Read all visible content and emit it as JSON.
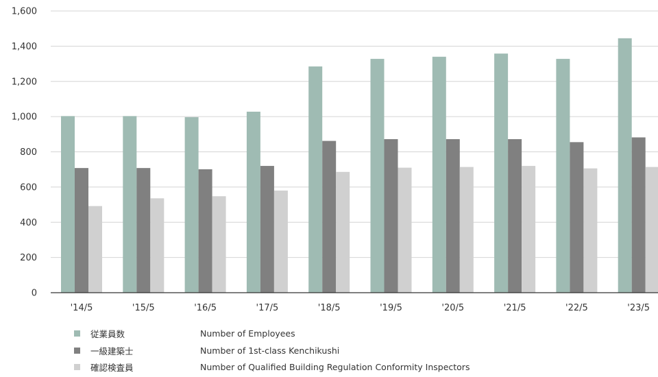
{
  "chart_data": {
    "type": "bar",
    "categories": [
      "'14/5",
      "'15/5",
      "'16/5",
      "'17/5",
      "'18/5",
      "'19/5",
      "'20/5",
      "'21/5",
      "'22/5",
      "'23/5"
    ],
    "series": [
      {
        "name": "従業員数",
        "name_en": "Number of Employees",
        "color": "#9fbbb3",
        "values": [
          1003,
          1003,
          997,
          1028,
          1285,
          1328,
          1340,
          1358,
          1328,
          1445
        ]
      },
      {
        "name": "一級建築士",
        "name_en": "Number of 1st-class Kenchikushi",
        "color": "#808080",
        "values": [
          708,
          708,
          701,
          720,
          862,
          872,
          872,
          872,
          855,
          882
        ]
      },
      {
        "name": "確認検査員",
        "name_en": "Number of Qualified Building Regulation Conformity Inspectors",
        "color": "#d0d0d0",
        "values": [
          492,
          536,
          548,
          580,
          686,
          710,
          714,
          720,
          706,
          714
        ]
      }
    ],
    "y_ticks": [
      "0",
      "200",
      "400",
      "600",
      "800",
      "1,000",
      "1,200",
      "1,400",
      "1,600"
    ],
    "ylim": [
      0,
      1600
    ],
    "grid": true,
    "legend_position": "bottom-left",
    "title": "",
    "xlabel": "",
    "ylabel": ""
  }
}
